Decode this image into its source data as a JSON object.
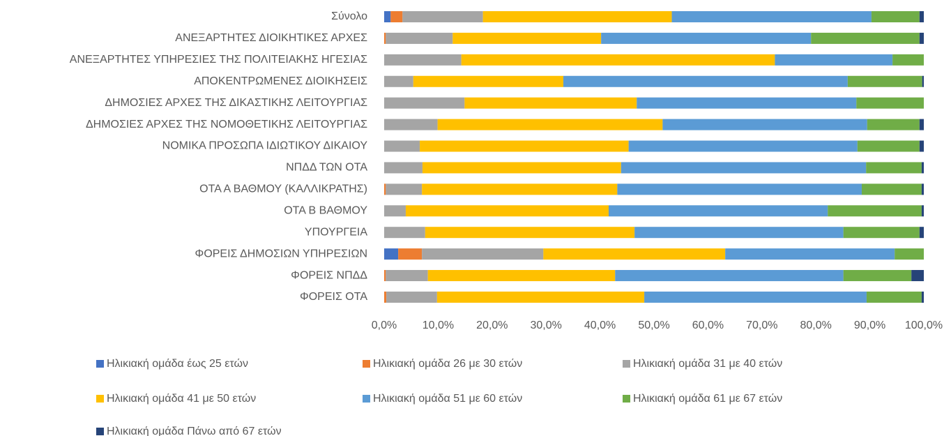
{
  "chart_data": {
    "type": "stacked_bar_horizontal",
    "categories": [
      "Σύνολο",
      "ΑΝΕΞΑΡΤΗΤΕΣ ΔΙΟΙΚΗΤΙΚΕΣ ΑΡΧΕΣ",
      "ΑΝΕΞΑΡΤΗΤΕΣ ΥΠΗΡΕΣΙΕΣ ΤΗΣ ΠΟΛΙΤΕΙΑΚΗΣ ΗΓΕΣΙΑΣ",
      "ΑΠΟΚΕΝΤΡΩΜΕΝΕΣ ΔΙΟΙΚΗΣΕΙΣ",
      "ΔΗΜΟΣΙΕΣ ΑΡΧΕΣ ΤΗΣ ΔΙΚΑΣΤΙΚΗΣ ΛΕΙΤΟΥΡΓΙΑΣ",
      "ΔΗΜΟΣΙΕΣ ΑΡΧΕΣ ΤΗΣ ΝΟΜΟΘΕΤΙΚΗΣ ΛΕΙΤΟΥΡΓΙΑΣ",
      "ΝΟΜΙΚΑ ΠΡΟΣΩΠΑ ΙΔΙΩΤΙΚΟΥ ΔΙΚΑΙΟΥ",
      "ΝΠΔΔ ΤΩΝ ΟΤΑ",
      "ΟΤΑ Α ΒΑΘΜΟΥ (ΚΑΛΛΙΚΡΑΤΗΣ)",
      "ΟΤΑ Β ΒΑΘΜΟΥ",
      "ΥΠΟΥΡΓΕΙΑ",
      "ΦΟΡΕΙΣ ΔΗΜΟΣΙΩΝ ΥΠΗΡΕΣΙΩΝ",
      "ΦΟΡΕΙΣ ΝΠΔΔ",
      "ΦΟΡΕΙΣ ΟΤΑ"
    ],
    "series": [
      {
        "name": "Ηλικιακή ομάδα έως 25 ετών",
        "color": "#4472c4",
        "values": [
          1.2,
          0,
          0,
          0,
          0,
          0,
          0,
          0,
          0,
          0,
          0,
          2.6,
          0,
          0
        ]
      },
      {
        "name": "Ηλικιακή ομάδα 26 με 30 ετών",
        "color": "#ed7d31",
        "values": [
          2.2,
          0.3,
          0,
          0,
          0,
          0,
          0,
          0,
          0.3,
          0,
          0,
          4.4,
          0.3,
          0.4
        ]
      },
      {
        "name": "Ηλικιακή ομάδα 31 με 40 ετών",
        "color": "#a5a5a5",
        "values": [
          14.9,
          12.4,
          14.3,
          5.4,
          14.9,
          9.9,
          6.6,
          7.1,
          6.7,
          4.0,
          7.6,
          22.5,
          7.8,
          9.4
        ]
      },
      {
        "name": "Ηλικιακή ομάδα 41 με 50 ετών",
        "color": "#ffc000",
        "values": [
          35.0,
          27.5,
          58.1,
          27.8,
          31.9,
          41.7,
          38.7,
          36.8,
          36.2,
          37.6,
          38.8,
          33.7,
          34.7,
          38.4
        ]
      },
      {
        "name": "Ηλικιακή ομάδα 51 με 60 ετών",
        "color": "#5b9bd5",
        "values": [
          37.0,
          38.9,
          21.8,
          52.7,
          40.7,
          37.9,
          42.4,
          45.4,
          45.3,
          40.6,
          38.7,
          31.4,
          42.3,
          41.2
        ]
      },
      {
        "name": "Ηλικιακή ομάδα 61 με 67 ετών",
        "color": "#70ad47",
        "values": [
          8.9,
          20.1,
          5.8,
          13.8,
          12.5,
          9.7,
          11.5,
          10.3,
          11.1,
          17.4,
          14.1,
          5.4,
          12.6,
          10.2
        ]
      },
      {
        "name": "Ηλικιακή ομάδα Πάνω από 67 ετών",
        "color": "#264478",
        "values": [
          0.8,
          0.8,
          0,
          0.3,
          0,
          0.8,
          0.8,
          0.4,
          0.4,
          0.4,
          0.8,
          0,
          2.3,
          0.4
        ]
      }
    ],
    "xlim": [
      0,
      100
    ],
    "xticks": [
      {
        "value": 0,
        "label": "0,0%"
      },
      {
        "value": 10,
        "label": "10,0%"
      },
      {
        "value": 20,
        "label": "20,0%"
      },
      {
        "value": 30,
        "label": "30,0%"
      },
      {
        "value": 40,
        "label": "40,0%"
      },
      {
        "value": 50,
        "label": "50,0%"
      },
      {
        "value": 60,
        "label": "60,0%"
      },
      {
        "value": 70,
        "label": "70,0%"
      },
      {
        "value": 80,
        "label": "80,0%"
      },
      {
        "value": 90,
        "label": "90,0%"
      },
      {
        "value": 100,
        "label": "100,0%"
      }
    ],
    "grid": false,
    "legend": "bottom"
  }
}
